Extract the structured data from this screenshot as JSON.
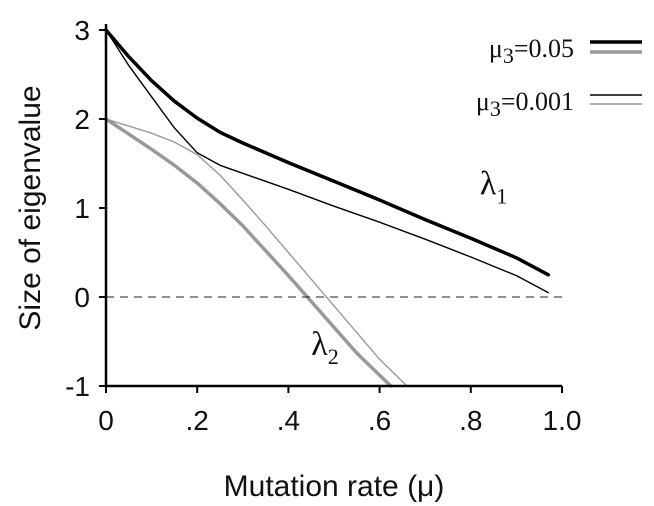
{
  "chart_data": {
    "type": "line",
    "xlabel": "Mutation rate (μ)",
    "ylabel": "Size of eigenvalue",
    "xlim": [
      0,
      1.0
    ],
    "ylim": [
      -1,
      3
    ],
    "x_ticks": [
      0,
      0.2,
      0.4,
      0.6,
      0.8,
      1.0
    ],
    "x_tick_labels": [
      "0",
      ".2",
      ".4",
      ".6",
      ".8",
      "1.0"
    ],
    "y_ticks": [
      -1,
      0,
      1,
      2,
      3
    ],
    "y_tick_labels": [
      "-1",
      "0",
      "1",
      "2",
      "3"
    ],
    "reference_line": {
      "y": 0,
      "style": "dashed"
    },
    "legend": {
      "placement": "top-right",
      "entries": [
        {
          "label": "μ3=0.05",
          "colors": [
            "#000000",
            "#999999"
          ],
          "weight": "thick"
        },
        {
          "label": "μ3=0.001",
          "colors": [
            "#000000",
            "#999999"
          ],
          "weight": "thin"
        }
      ]
    },
    "curve_labels": [
      {
        "symbol": "λ",
        "sub": "1",
        "x": 0.82,
        "y": 1.15
      },
      {
        "symbol": "λ",
        "sub": "2",
        "x": 0.45,
        "y": -0.65
      }
    ],
    "series": [
      {
        "eigenvalue": "λ1",
        "mu3": "0.05",
        "color": "#000000",
        "weight": "thick",
        "x": [
          0,
          0.05,
          0.1,
          0.15,
          0.2,
          0.25,
          0.3,
          0.4,
          0.5,
          0.6,
          0.7,
          0.8,
          0.9,
          0.97
        ],
        "y": [
          3.0,
          2.7,
          2.43,
          2.2,
          2.01,
          1.85,
          1.73,
          1.51,
          1.3,
          1.09,
          0.87,
          0.66,
          0.44,
          0.25
        ]
      },
      {
        "eigenvalue": "λ1",
        "mu3": "0.001",
        "color": "#000000",
        "weight": "thin",
        "x": [
          0,
          0.05,
          0.1,
          0.15,
          0.2,
          0.25,
          0.3,
          0.4,
          0.5,
          0.6,
          0.7,
          0.8,
          0.9,
          0.97
        ],
        "y": [
          3.0,
          2.6,
          2.25,
          1.9,
          1.62,
          1.48,
          1.39,
          1.21,
          1.02,
          0.84,
          0.65,
          0.45,
          0.24,
          0.05
        ]
      },
      {
        "eigenvalue": "λ2",
        "mu3": "0.05",
        "color": "#999999",
        "weight": "thick",
        "x": [
          0,
          0.05,
          0.1,
          0.15,
          0.2,
          0.25,
          0.3,
          0.35,
          0.4,
          0.45,
          0.5,
          0.55,
          0.6,
          0.625
        ],
        "y": [
          2.0,
          1.83,
          1.66,
          1.48,
          1.28,
          1.05,
          0.8,
          0.52,
          0.24,
          -0.05,
          -0.34,
          -0.63,
          -0.88,
          -1.0
        ]
      },
      {
        "eigenvalue": "λ2",
        "mu3": "0.001",
        "color": "#999999",
        "weight": "thin",
        "x": [
          0,
          0.05,
          0.1,
          0.15,
          0.2,
          0.25,
          0.3,
          0.35,
          0.4,
          0.45,
          0.5,
          0.55,
          0.6,
          0.66
        ],
        "y": [
          2.0,
          1.92,
          1.84,
          1.74,
          1.6,
          1.37,
          1.09,
          0.8,
          0.5,
          0.2,
          -0.1,
          -0.4,
          -0.7,
          -1.0
        ]
      }
    ]
  }
}
